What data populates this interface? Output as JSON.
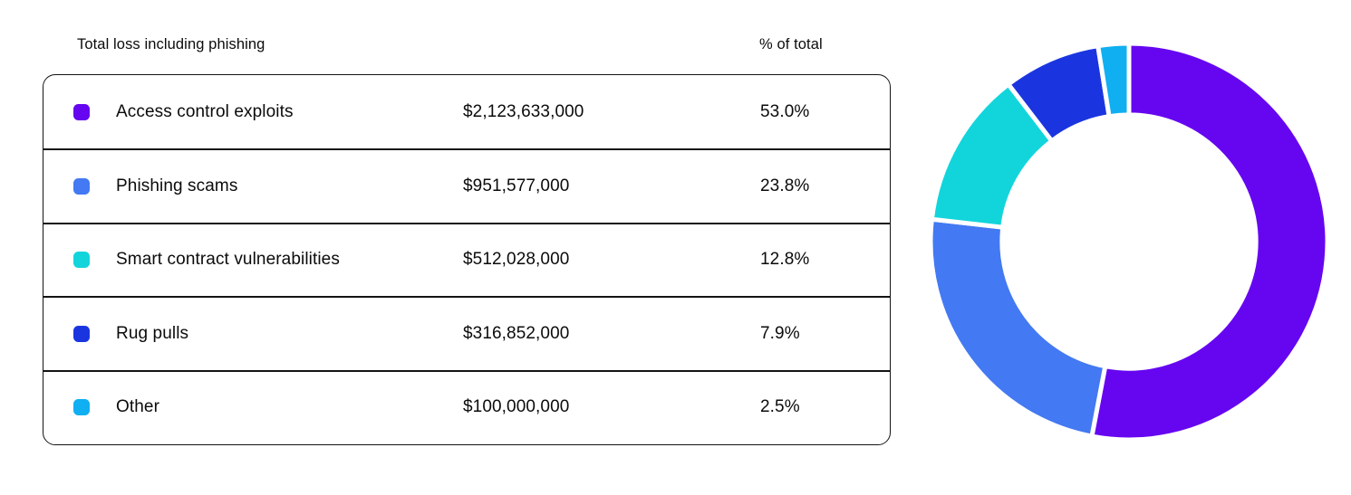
{
  "table": {
    "header": {
      "loss_label": "Total loss including phishing",
      "pct_label": "% of total"
    },
    "rows": [
      {
        "label": "Access control exploits",
        "value": "$2,123,633,000",
        "pct": "53.0%",
        "color": "#6606F0"
      },
      {
        "label": "Phishing scams",
        "value": "$951,577,000",
        "pct": "23.8%",
        "color": "#4379F2"
      },
      {
        "label": "Smart contract vulnerabilities",
        "value": "$512,028,000",
        "pct": "12.8%",
        "color": "#12D5DC"
      },
      {
        "label": "Rug pulls",
        "value": "$316,852,000",
        "pct": "7.9%",
        "color": "#1A35E0"
      },
      {
        "label": "Other",
        "value": "$100,000,000",
        "pct": "2.5%",
        "color": "#0FAFF2"
      }
    ]
  },
  "chart_data": {
    "type": "pie",
    "subtype": "donut",
    "title": "",
    "categories": [
      "Access control exploits",
      "Phishing scams",
      "Smart contract vulnerabilities",
      "Rug pulls",
      "Other"
    ],
    "values": [
      2123633000,
      951577000,
      512028000,
      316852000,
      100000000
    ],
    "percentages": [
      53.0,
      23.8,
      12.8,
      7.9,
      2.5
    ],
    "colors": [
      "#6606F0",
      "#4379F2",
      "#12D5DC",
      "#1A35E0",
      "#0FAFF2"
    ],
    "start_angle_deg": 0,
    "direction": "clockwise",
    "inner_radius_ratio": 0.64,
    "segment_gap_color": "#FFFFFF",
    "legend_position": "left-table"
  }
}
